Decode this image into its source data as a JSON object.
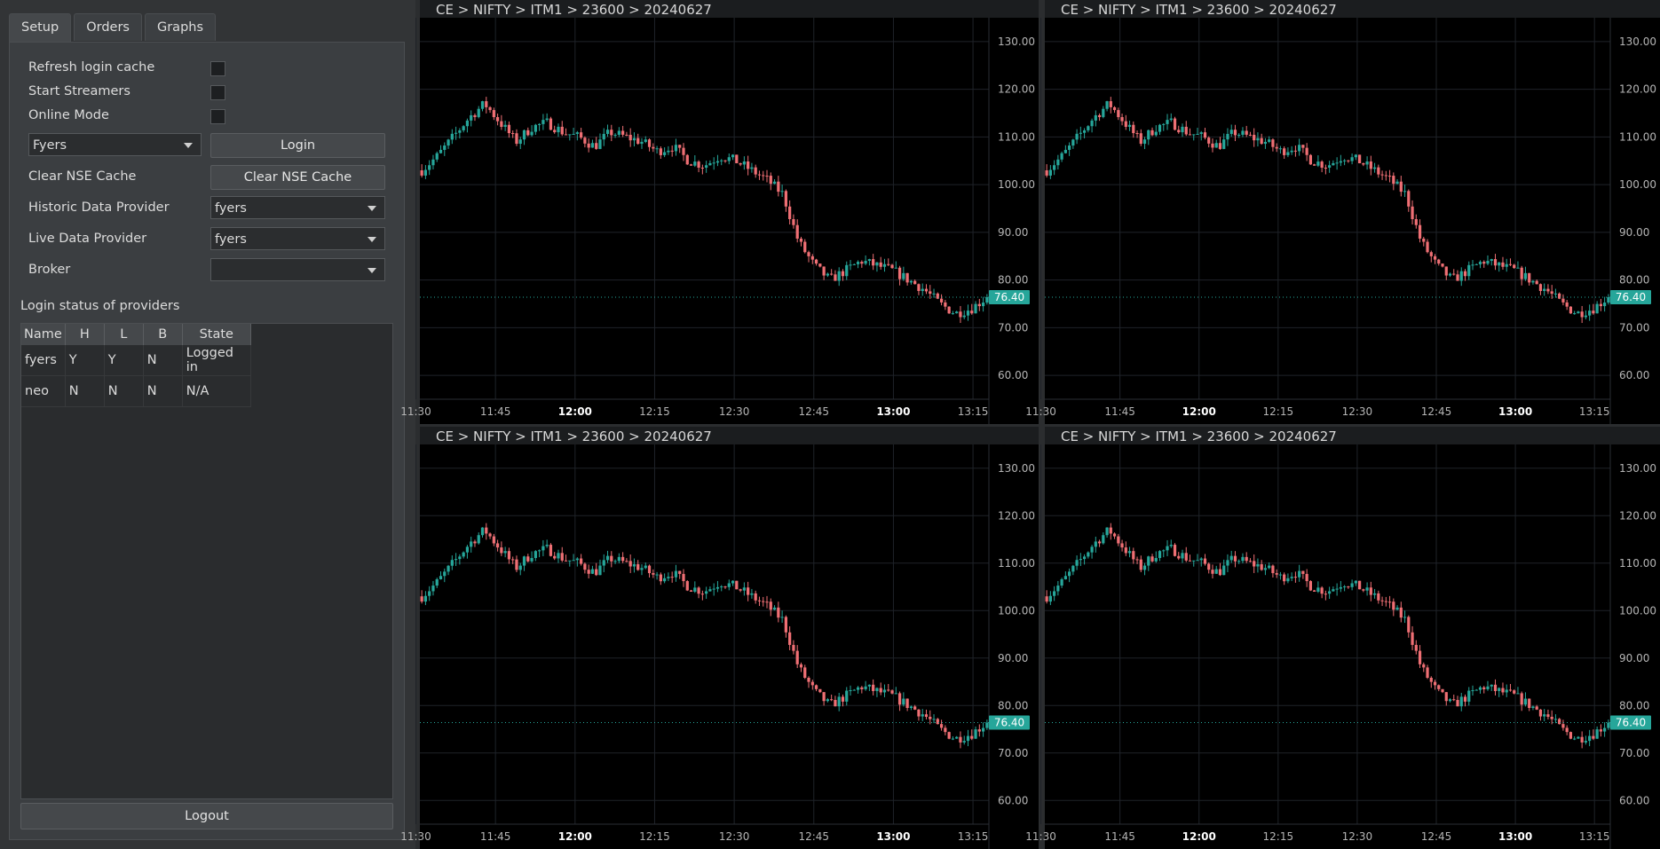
{
  "tabs": [
    "Setup",
    "Orders",
    "Graphs"
  ],
  "setup": {
    "refresh_login_cache": "Refresh login cache",
    "start_streamers": "Start Streamers",
    "online_mode": "Online Mode",
    "provider_combo": "Fyers",
    "login_button": "Login",
    "clear_nse_label": "Clear NSE Cache",
    "clear_nse_button": "Clear NSE Cache",
    "historic_label": "Historic Data Provider",
    "historic_value": "fyers",
    "live_label": "Live Data Provider",
    "live_value": "fyers",
    "broker_label": "Broker",
    "broker_value": "",
    "login_status_title": "Login status of providers",
    "logout_button": "Logout"
  },
  "login_table": {
    "headers": [
      "Name",
      "H",
      "L",
      "B",
      "State"
    ],
    "rows": [
      [
        "fyers",
        "Y",
        "Y",
        "N",
        "Logged in"
      ],
      [
        "neo",
        "N",
        "N",
        "N",
        "N/A"
      ]
    ]
  },
  "colors": {
    "up": "#26a69a",
    "down": "#ef6f74",
    "price_tag": "#26a69a"
  },
  "charts": [
    {
      "title": "CE > NIFTY > ITM1 > 23600 > 20240627"
    },
    {
      "title": "CE > NIFTY > ITM1 > 23600 > 20240627"
    },
    {
      "title": "CE > NIFTY > ITM1 > 23600 > 20240627"
    },
    {
      "title": "CE > NIFTY > ITM1 > 23600 > 20240627"
    }
  ],
  "chart_data": {
    "type": "candlestick",
    "y_ticks": [
      "130.00",
      "120.00",
      "110.00",
      "100.00",
      "90.00",
      "80.00",
      "70.00",
      "60.00"
    ],
    "x_ticks": [
      "11:30",
      "11:45",
      "12:00",
      "12:15",
      "12:30",
      "12:45",
      "13:00",
      "13:15"
    ],
    "bold_x_ticks": [
      "12:00",
      "13:00"
    ],
    "last_price": "76.40",
    "ylim": [
      55,
      135
    ],
    "close_path": [
      103,
      106,
      110,
      114,
      117,
      113,
      109,
      112,
      113,
      111,
      110,
      108,
      111,
      110,
      109,
      107,
      108,
      105,
      104,
      106,
      105,
      103,
      101,
      98,
      88,
      83,
      80,
      82,
      84,
      83,
      82,
      80,
      78,
      75,
      73,
      74,
      76.4
    ]
  }
}
